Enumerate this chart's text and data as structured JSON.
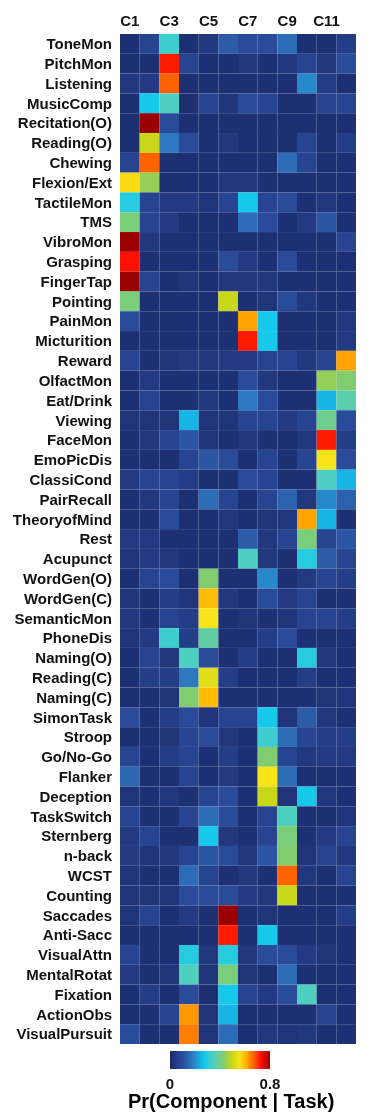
{
  "chart_data": {
    "type": "heatmap",
    "categories": [
      "C1",
      null,
      "C3",
      null,
      "C5",
      null,
      "C7",
      null,
      "C9",
      null,
      "C11",
      null
    ],
    "y_categories": [
      "ToneMon",
      "PitchMon",
      "Listening",
      "MusicComp",
      "Recitation(O)",
      "Reading(O)",
      "Chewing",
      "Flexion/Ext",
      "TactileMon",
      "TMS",
      "VibroMon",
      "Grasping",
      "FingerTap",
      "Pointing",
      "PainMon",
      "Micturition",
      "Reward",
      "OlfactMon",
      "Eat/Drink",
      "Viewing",
      "FaceMon",
      "EmoPicDis",
      "ClassiCond",
      "PairRecall",
      "TheoryofMind",
      "Rest",
      "Acupunct",
      "WordGen(O)",
      "WordGen(C)",
      "SemanticMon",
      "PhoneDis",
      "Naming(O)",
      "Reading(C)",
      "Naming(C)",
      "SimonTask",
      "Stroop",
      "Go/No-Go",
      "Flanker",
      "Deception",
      "TaskSwitch",
      "Sternberg",
      "n-back",
      "WCST",
      "Counting",
      "Saccades",
      "Anti-Sacc",
      "VisualAttn",
      "MentalRotat",
      "Fixation",
      "ActionObs",
      "VisualPursuit"
    ],
    "cells": [
      [
        0.02,
        0.08,
        0.33,
        0.02,
        0.04,
        0.13,
        0.1,
        0.1,
        0.16,
        0.02,
        0.02,
        0.06
      ],
      [
        0.02,
        0.02,
        0.72,
        0.08,
        0.02,
        0.02,
        0.04,
        0.02,
        0.04,
        0.08,
        0.04,
        0.1
      ],
      [
        0.04,
        0.05,
        0.67,
        0.02,
        0.02,
        0.02,
        0.02,
        0.02,
        0.02,
        0.2,
        0.06,
        0.02
      ],
      [
        0.02,
        0.28,
        0.35,
        0.02,
        0.08,
        0.03,
        0.1,
        0.08,
        0.02,
        0.02,
        0.08,
        0.08
      ],
      [
        0.02,
        0.8,
        0.1,
        0.02,
        0.02,
        0.02,
        0.02,
        0.02,
        0.02,
        0.02,
        0.02,
        0.02
      ],
      [
        0.02,
        0.5,
        0.18,
        0.1,
        0.02,
        0.04,
        0.02,
        0.02,
        0.02,
        0.08,
        0.02,
        0.06
      ],
      [
        0.08,
        0.67,
        0.02,
        0.02,
        0.02,
        0.02,
        0.02,
        0.02,
        0.16,
        0.08,
        0.02,
        0.02
      ],
      [
        0.57,
        0.45,
        0.02,
        0.02,
        0.02,
        0.04,
        0.04,
        0.02,
        0.02,
        0.02,
        0.02,
        0.02
      ],
      [
        0.3,
        0.08,
        0.05,
        0.05,
        0.03,
        0.08,
        0.28,
        0.08,
        0.1,
        0.02,
        0.04,
        0.02
      ],
      [
        0.42,
        0.08,
        0.05,
        0.02,
        0.02,
        0.02,
        0.16,
        0.1,
        0.02,
        0.05,
        0.12,
        0.02
      ],
      [
        0.8,
        0.04,
        0.02,
        0.02,
        0.02,
        0.02,
        0.02,
        0.02,
        0.02,
        0.02,
        0.02,
        0.08
      ],
      [
        0.73,
        0.02,
        0.02,
        0.02,
        0.02,
        0.1,
        0.05,
        0.02,
        0.1,
        0.02,
        0.02,
        0.02
      ],
      [
        0.8,
        0.08,
        0.02,
        0.03,
        0.02,
        0.04,
        0.04,
        0.04,
        0.02,
        0.02,
        0.02,
        0.02
      ],
      [
        0.42,
        0.02,
        0.02,
        0.02,
        0.02,
        0.5,
        0.02,
        0.03,
        0.1,
        0.04,
        0.02,
        0.02
      ],
      [
        0.1,
        0.02,
        0.02,
        0.02,
        0.02,
        0.02,
        0.62,
        0.28,
        0.02,
        0.02,
        0.02,
        0.04
      ],
      [
        0.02,
        0.02,
        0.02,
        0.02,
        0.02,
        0.02,
        0.72,
        0.28,
        0.02,
        0.02,
        0.02,
        0.05
      ],
      [
        0.08,
        0.02,
        0.03,
        0.05,
        0.04,
        0.05,
        0.05,
        0.08,
        0.08,
        0.04,
        0.08,
        0.62
      ],
      [
        0.02,
        0.05,
        0.02,
        0.02,
        0.02,
        0.02,
        0.1,
        0.04,
        0.02,
        0.02,
        0.45,
        0.43
      ],
      [
        0.02,
        0.08,
        0.02,
        0.02,
        0.04,
        0.02,
        0.18,
        0.1,
        0.02,
        0.02,
        0.25,
        0.37
      ],
      [
        0.03,
        0.03,
        0.03,
        0.25,
        0.03,
        0.03,
        0.08,
        0.08,
        0.05,
        0.08,
        0.4,
        0.1
      ],
      [
        0.02,
        0.04,
        0.08,
        0.12,
        0.03,
        0.02,
        0.04,
        0.02,
        0.02,
        0.04,
        0.72,
        0.06
      ],
      [
        0.02,
        0.02,
        0.02,
        0.08,
        0.12,
        0.1,
        0.02,
        0.08,
        0.02,
        0.08,
        0.56,
        0.1
      ],
      [
        0.05,
        0.08,
        0.08,
        0.06,
        0.02,
        0.02,
        0.1,
        0.08,
        0.02,
        0.02,
        0.35,
        0.25
      ],
      [
        0.02,
        0.04,
        0.08,
        0.02,
        0.16,
        0.08,
        0.02,
        0.08,
        0.14,
        0.04,
        0.2,
        0.14
      ],
      [
        0.02,
        0.02,
        0.1,
        0.02,
        0.02,
        0.04,
        0.02,
        0.03,
        0.04,
        0.62,
        0.25,
        0.02
      ],
      [
        0.05,
        0.05,
        0.02,
        0.02,
        0.02,
        0.02,
        0.13,
        0.04,
        0.08,
        0.42,
        0.08,
        0.12
      ],
      [
        0.03,
        0.05,
        0.04,
        0.02,
        0.02,
        0.02,
        0.35,
        0.04,
        0.02,
        0.3,
        0.13,
        0.08
      ],
      [
        0.02,
        0.08,
        0.1,
        0.02,
        0.43,
        0.02,
        0.02,
        0.2,
        0.02,
        0.05,
        0.08,
        0.06
      ],
      [
        0.03,
        0.02,
        0.06,
        0.03,
        0.6,
        0.04,
        0.02,
        0.1,
        0.05,
        0.08,
        0.02,
        0.02
      ],
      [
        0.04,
        0.02,
        0.08,
        0.06,
        0.56,
        0.02,
        0.03,
        0.02,
        0.03,
        0.08,
        0.08,
        0.06
      ],
      [
        0.03,
        0.05,
        0.33,
        0.06,
        0.38,
        0.02,
        0.02,
        0.06,
        0.1,
        0.02,
        0.02,
        0.02
      ],
      [
        0.02,
        0.08,
        0.04,
        0.35,
        0.1,
        0.02,
        0.06,
        0.02,
        0.02,
        0.3,
        0.04,
        0.02
      ],
      [
        0.02,
        0.06,
        0.06,
        0.18,
        0.53,
        0.06,
        0.02,
        0.02,
        0.02,
        0.06,
        0.02,
        0.02
      ],
      [
        0.02,
        0.02,
        0.03,
        0.43,
        0.6,
        0.02,
        0.02,
        0.02,
        0.02,
        0.02,
        0.03,
        0.03
      ],
      [
        0.1,
        0.02,
        0.06,
        0.1,
        0.03,
        0.08,
        0.08,
        0.28,
        0.03,
        0.13,
        0.04,
        0.02
      ],
      [
        0.02,
        0.02,
        0.03,
        0.08,
        0.1,
        0.04,
        0.02,
        0.33,
        0.16,
        0.08,
        0.06,
        0.06
      ],
      [
        0.08,
        0.02,
        0.06,
        0.08,
        0.02,
        0.06,
        0.02,
        0.43,
        0.08,
        0.04,
        0.05,
        0.05
      ],
      [
        0.15,
        0.02,
        0.02,
        0.08,
        0.02,
        0.05,
        0.02,
        0.56,
        0.16,
        0.02,
        0.02,
        0.02
      ],
      [
        0.03,
        0.02,
        0.04,
        0.02,
        0.08,
        0.1,
        0.02,
        0.5,
        0.03,
        0.28,
        0.04,
        0.02
      ],
      [
        0.08,
        0.02,
        0.02,
        0.08,
        0.16,
        0.1,
        0.02,
        0.08,
        0.35,
        0.02,
        0.02,
        0.03
      ],
      [
        0.05,
        0.08,
        0.02,
        0.02,
        0.28,
        0.04,
        0.02,
        0.08,
        0.42,
        0.02,
        0.05,
        0.08
      ],
      [
        0.05,
        0.03,
        0.04,
        0.08,
        0.12,
        0.1,
        0.04,
        0.12,
        0.43,
        0.03,
        0.08,
        0.04
      ],
      [
        0.03,
        0.02,
        0.02,
        0.16,
        0.08,
        0.02,
        0.04,
        0.02,
        0.67,
        0.04,
        0.02,
        0.08
      ],
      [
        0.03,
        0.03,
        0.03,
        0.1,
        0.1,
        0.1,
        0.05,
        0.04,
        0.5,
        0.02,
        0.02,
        0.02
      ],
      [
        0.03,
        0.08,
        0.02,
        0.05,
        0.02,
        0.8,
        0.02,
        0.03,
        0.02,
        0.02,
        0.02,
        0.06
      ],
      [
        0.02,
        0.02,
        0.02,
        0.02,
        0.02,
        0.72,
        0.02,
        0.28,
        0.02,
        0.02,
        0.02,
        0.02
      ],
      [
        0.08,
        0.02,
        0.02,
        0.3,
        0.04,
        0.3,
        0.04,
        0.1,
        0.1,
        0.05,
        0.03,
        0.02
      ],
      [
        0.05,
        0.02,
        0.03,
        0.35,
        0.03,
        0.42,
        0.03,
        0.02,
        0.16,
        0.02,
        0.02,
        0.02
      ],
      [
        0.02,
        0.06,
        0.02,
        0.1,
        0.02,
        0.28,
        0.08,
        0.05,
        0.1,
        0.35,
        0.02,
        0.02
      ],
      [
        0.02,
        0.02,
        0.08,
        0.63,
        0.03,
        0.25,
        0.02,
        0.02,
        0.02,
        0.02,
        0.08,
        0.02
      ],
      [
        0.1,
        0.02,
        0.02,
        0.65,
        0.03,
        0.16,
        0.02,
        0.04,
        0.03,
        0.04,
        0.02,
        0.02
      ]
    ],
    "clim": [
      0,
      0.8
    ],
    "cticks": [
      0,
      0.8
    ],
    "clabel": "Pr(Component | Task)"
  }
}
